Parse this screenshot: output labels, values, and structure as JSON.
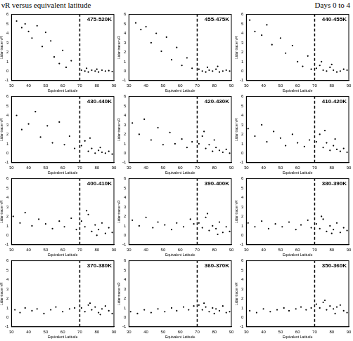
{
  "header": {
    "title": "νR versus equivalent latitude",
    "subtitle": "Days 0 to 4"
  },
  "chart_data": [
    {
      "type": "scatter",
      "title": "475-520K",
      "x_label": "Equivalent Latitude",
      "y_label": "Lidar tracer νR",
      "xlim": [
        30,
        90
      ],
      "ylim": [
        -1,
        6
      ],
      "xticks": [
        30,
        40,
        50,
        60,
        70,
        80,
        90
      ],
      "yticks": [
        -1,
        0,
        1,
        2,
        3,
        4,
        5,
        6
      ],
      "grid": false,
      "series": [
        {
          "color": "#000000",
          "marker": "dot",
          "x": [
            33,
            36,
            38,
            40,
            42,
            45,
            48,
            50,
            53,
            55,
            58,
            60,
            62,
            65,
            71,
            73,
            75,
            77,
            79,
            81,
            83,
            85,
            87,
            89,
            74,
            80
          ],
          "values": [
            5.3,
            4.6,
            5.0,
            4.2,
            3.5,
            4.8,
            2.6,
            4.1,
            3.2,
            1.5,
            0.8,
            2.2,
            0.4,
            1.1,
            0.1,
            0.0,
            -0.1,
            0.1,
            0.0,
            -0.1,
            0.1,
            0.0,
            0.05,
            -0.05,
            0.3,
            0.2
          ]
        },
        {
          "type": "line",
          "line_style": "dashed",
          "color": "#000000",
          "x": [
            70,
            70
          ],
          "values": [
            -1,
            6
          ]
        }
      ]
    },
    {
      "type": "scatter",
      "title": "455-475K",
      "x_label": "Equivalent Latitude",
      "y_label": "Lidar tracer νR",
      "xlim": [
        30,
        90
      ],
      "ylim": [
        -1,
        6
      ],
      "xticks": [
        30,
        40,
        50,
        60,
        70,
        80,
        90
      ],
      "yticks": [
        -1,
        0,
        1,
        2,
        3,
        4,
        5,
        6
      ],
      "grid": false,
      "series": [
        {
          "color": "#000000",
          "marker": "dot",
          "x": [
            34,
            37,
            40,
            43,
            46,
            49,
            52,
            55,
            58,
            61,
            64,
            67,
            71,
            73,
            75,
            77,
            79,
            81,
            83,
            85,
            87,
            89,
            76,
            82
          ],
          "values": [
            5.1,
            4.4,
            4.7,
            3.0,
            4.0,
            2.1,
            3.6,
            1.2,
            2.5,
            0.6,
            1.4,
            0.3,
            0.2,
            0.0,
            -0.1,
            0.1,
            0.0,
            0.2,
            -0.1,
            0.0,
            0.1,
            0.0,
            0.4,
            0.5
          ]
        },
        {
          "type": "line",
          "line_style": "dashed",
          "color": "#000000",
          "x": [
            70,
            70
          ],
          "values": [
            -1,
            6
          ]
        }
      ]
    },
    {
      "type": "scatter",
      "title": "440-455K",
      "x_label": "Equivalent Latitude",
      "y_label": "Lidar tracer νR",
      "xlim": [
        30,
        90
      ],
      "ylim": [
        -1,
        6
      ],
      "xticks": [
        30,
        40,
        50,
        60,
        70,
        80,
        90
      ],
      "yticks": [
        -1,
        0,
        1,
        2,
        3,
        4,
        5,
        6
      ],
      "grid": false,
      "series": [
        {
          "color": "#000000",
          "marker": "dot",
          "x": [
            32,
            35,
            39,
            42,
            45,
            50,
            53,
            57,
            60,
            63,
            66,
            68,
            71,
            73,
            75,
            77,
            79,
            81,
            83,
            85,
            87,
            89,
            74,
            80
          ],
          "values": [
            5.4,
            4.2,
            3.8,
            4.9,
            2.8,
            3.5,
            1.9,
            2.7,
            1.0,
            0.5,
            1.6,
            0.2,
            0.3,
            0.6,
            0.1,
            0.0,
            0.4,
            0.1,
            -0.1,
            0.0,
            0.2,
            0.1,
            1.0,
            0.7
          ]
        },
        {
          "type": "line",
          "line_style": "dashed",
          "color": "#000000",
          "x": [
            70,
            70
          ],
          "values": [
            -1,
            6
          ]
        }
      ]
    },
    {
      "type": "scatter",
      "title": "430-440K",
      "x_label": "Equivalent Latitude",
      "y_label": "Lidar tracer νR",
      "xlim": [
        30,
        90
      ],
      "ylim": [
        -1,
        6
      ],
      "xticks": [
        30,
        40,
        50,
        60,
        70,
        80,
        90
      ],
      "yticks": [
        -1,
        0,
        1,
        2,
        3,
        4,
        5,
        6
      ],
      "grid": false,
      "series": [
        {
          "color": "#000000",
          "marker": "dot",
          "x": [
            33,
            36,
            40,
            44,
            47,
            51,
            54,
            58,
            61,
            64,
            67,
            71,
            73,
            75,
            77,
            79,
            81,
            83,
            85,
            87,
            89,
            76,
            82
          ],
          "values": [
            4.0,
            2.5,
            3.1,
            4.4,
            1.7,
            2.9,
            1.1,
            3.3,
            0.9,
            1.8,
            0.5,
            0.8,
            1.3,
            0.2,
            0.5,
            0.0,
            0.3,
            0.1,
            0.0,
            0.2,
            -0.1,
            1.6,
            0.6
          ]
        },
        {
          "type": "line",
          "line_style": "dashed",
          "color": "#000000",
          "x": [
            70,
            70
          ],
          "values": [
            -1,
            6
          ]
        }
      ]
    },
    {
      "type": "scatter",
      "title": "420-430K",
      "x_label": "Equivalent Latitude",
      "y_label": "Lidar tracer νR",
      "xlim": [
        30,
        90
      ],
      "ylim": [
        -1,
        6
      ],
      "xticks": [
        30,
        40,
        50,
        60,
        70,
        80,
        90
      ],
      "yticks": [
        -1,
        0,
        1,
        2,
        3,
        4,
        5,
        6
      ],
      "grid": false,
      "series": [
        {
          "color": "#000000",
          "marker": "dot",
          "x": [
            32,
            36,
            39,
            43,
            47,
            50,
            54,
            57,
            61,
            64,
            67,
            71,
            73,
            75,
            77,
            79,
            81,
            83,
            85,
            87,
            89,
            74,
            80
          ],
          "values": [
            3.2,
            2.0,
            3.6,
            1.4,
            2.7,
            0.9,
            2.2,
            1.0,
            1.5,
            0.6,
            1.2,
            1.0,
            1.8,
            0.5,
            0.9,
            0.2,
            0.6,
            0.3,
            0.1,
            0.4,
            0.0,
            2.3,
            1.4
          ]
        },
        {
          "type": "line",
          "line_style": "dashed",
          "color": "#000000",
          "x": [
            70,
            70
          ],
          "values": [
            -1,
            6
          ]
        }
      ]
    },
    {
      "type": "scatter",
      "title": "410-420K",
      "x_label": "Equivalent Latitude",
      "y_label": "Lidar tracer νR",
      "xlim": [
        30,
        90
      ],
      "ylim": [
        -1,
        6
      ],
      "xticks": [
        30,
        40,
        50,
        60,
        70,
        80,
        90
      ],
      "yticks": [
        -1,
        0,
        1,
        2,
        3,
        4,
        5,
        6
      ],
      "grid": false,
      "series": [
        {
          "color": "#000000",
          "marker": "dot",
          "x": [
            31,
            35,
            39,
            42,
            46,
            50,
            53,
            57,
            60,
            64,
            67,
            71,
            73,
            75,
            77,
            79,
            81,
            83,
            85,
            87,
            89,
            76,
            82
          ],
          "values": [
            2.6,
            1.8,
            3.0,
            1.2,
            2.3,
            1.6,
            0.8,
            2.0,
            1.1,
            0.7,
            1.4,
            1.2,
            2.0,
            0.6,
            1.1,
            0.3,
            0.8,
            0.4,
            0.2,
            0.5,
            0.1,
            2.4,
            1.5
          ]
        },
        {
          "type": "line",
          "line_style": "dashed",
          "color": "#000000",
          "x": [
            70,
            70
          ],
          "values": [
            -1,
            6
          ]
        }
      ]
    },
    {
      "type": "scatter",
      "title": "400-410K",
      "x_label": "Equivalent Latitude",
      "y_label": "Lidar tracer νR",
      "xlim": [
        30,
        90
      ],
      "ylim": [
        -1,
        6
      ],
      "xticks": [
        30,
        40,
        50,
        60,
        70,
        80,
        90
      ],
      "yticks": [
        -1,
        0,
        1,
        2,
        3,
        4,
        5,
        6
      ],
      "grid": false,
      "series": [
        {
          "color": "#000000",
          "marker": "dot",
          "x": [
            31,
            35,
            38,
            42,
            46,
            50,
            54,
            58,
            61,
            65,
            68,
            71,
            73,
            75,
            77,
            79,
            81,
            83,
            85,
            87,
            89,
            74,
            80
          ],
          "values": [
            2.0,
            1.3,
            2.4,
            1.0,
            1.7,
            1.2,
            0.7,
            1.5,
            0.9,
            1.8,
            0.6,
            1.5,
            0.9,
            2.2,
            0.4,
            1.1,
            0.6,
            1.3,
            0.2,
            0.8,
            0.3,
            2.6,
            0.0
          ]
        },
        {
          "type": "line",
          "line_style": "dashed",
          "color": "#000000",
          "x": [
            70,
            70
          ],
          "values": [
            -1,
            6
          ]
        }
      ]
    },
    {
      "type": "scatter",
      "title": "390-400K",
      "x_label": "Equivalent Latitude",
      "y_label": "Lidar tracer νR",
      "xlim": [
        30,
        90
      ],
      "ylim": [
        -1,
        6
      ],
      "xticks": [
        30,
        40,
        50,
        60,
        70,
        80,
        90
      ],
      "yticks": [
        -1,
        0,
        1,
        2,
        3,
        4,
        5,
        6
      ],
      "grid": false,
      "series": [
        {
          "color": "#000000",
          "marker": "dot",
          "x": [
            32,
            36,
            40,
            44,
            47,
            51,
            55,
            58,
            62,
            66,
            68,
            71,
            73,
            75,
            77,
            79,
            81,
            83,
            85,
            87,
            89,
            76,
            82
          ],
          "values": [
            1.6,
            1.0,
            1.9,
            0.8,
            1.4,
            1.1,
            0.6,
            1.3,
            0.9,
            1.7,
            1.2,
            1.3,
            0.8,
            1.9,
            0.5,
            1.0,
            0.7,
            1.4,
            0.3,
            0.9,
            0.4,
            2.3,
            0.1
          ]
        },
        {
          "type": "line",
          "line_style": "dashed",
          "color": "#000000",
          "x": [
            70,
            70
          ],
          "values": [
            -1,
            6
          ]
        }
      ]
    },
    {
      "type": "scatter",
      "title": "380-390K",
      "x_label": "Equivalent Latitude",
      "y_label": "Lidar tracer νR",
      "xlim": [
        30,
        90
      ],
      "ylim": [
        -1,
        6
      ],
      "xticks": [
        30,
        40,
        50,
        60,
        70,
        80,
        90
      ],
      "yticks": [
        -1,
        0,
        1,
        2,
        3,
        4,
        5,
        6
      ],
      "grid": false,
      "series": [
        {
          "color": "#000000",
          "marker": "dot",
          "x": [
            31,
            35,
            39,
            43,
            47,
            51,
            55,
            59,
            62,
            66,
            68,
            71,
            73,
            75,
            77,
            79,
            81,
            83,
            85,
            87,
            89,
            74,
            80
          ],
          "values": [
            1.3,
            0.9,
            1.5,
            0.7,
            1.2,
            0.9,
            1.4,
            0.6,
            1.1,
            1.6,
            0.8,
            1.2,
            0.7,
            1.7,
            0.4,
            1.0,
            0.6,
            1.3,
            0.3,
            0.8,
            0.5,
            2.0,
            0.2
          ]
        },
        {
          "type": "line",
          "line_style": "dashed",
          "color": "#000000",
          "x": [
            70,
            70
          ],
          "values": [
            -1,
            6
          ]
        }
      ]
    },
    {
      "type": "scatter",
      "title": "370-380K",
      "x_label": "Equivalent Latitude",
      "y_label": "Lidar tracer νR",
      "xlim": [
        30,
        90
      ],
      "ylim": [
        -1,
        6
      ],
      "xticks": [
        30,
        40,
        50,
        60,
        70,
        80,
        90
      ],
      "yticks": [
        -1,
        0,
        1,
        2,
        3,
        4,
        5,
        6
      ],
      "grid": false,
      "series": [
        {
          "color": "#000000",
          "marker": "dot",
          "x": [
            32,
            35,
            38,
            42,
            45,
            49,
            53,
            56,
            60,
            64,
            67,
            71,
            73,
            75,
            77,
            79,
            81,
            83,
            85,
            87,
            89,
            76,
            82
          ],
          "values": [
            0.8,
            0.5,
            1.0,
            0.7,
            0.9,
            0.4,
            0.8,
            1.1,
            0.6,
            0.9,
            1.0,
            1.0,
            0.6,
            1.3,
            0.8,
            1.1,
            0.5,
            0.9,
            1.2,
            0.7,
            0.4,
            1.5,
            0.3
          ]
        },
        {
          "type": "line",
          "line_style": "dashed",
          "color": "#000000",
          "x": [
            70,
            70
          ],
          "values": [
            -1,
            6
          ]
        }
      ]
    },
    {
      "type": "scatter",
      "title": "360-370K",
      "x_label": "Equivalent Latitude",
      "y_label": "Lidar tracer νR",
      "xlim": [
        30,
        90
      ],
      "ylim": [
        -1,
        6
      ],
      "xticks": [
        30,
        40,
        50,
        60,
        70,
        80,
        90
      ],
      "yticks": [
        -1,
        0,
        1,
        2,
        3,
        4,
        5,
        6
      ],
      "grid": false,
      "series": [
        {
          "color": "#000000",
          "marker": "dot",
          "x": [
            31,
            35,
            39,
            43,
            47,
            51,
            55,
            58,
            62,
            65,
            68,
            71,
            73,
            75,
            77,
            79,
            81,
            83,
            85,
            87,
            89,
            74,
            80
          ],
          "values": [
            0.6,
            0.4,
            0.8,
            0.5,
            0.9,
            0.6,
            1.0,
            0.7,
            1.1,
            0.8,
            1.2,
            1.3,
            0.8,
            1.1,
            0.6,
            1.0,
            0.9,
            0.7,
            1.2,
            0.5,
            0.6,
            1.5,
            0.4
          ]
        },
        {
          "type": "line",
          "line_style": "dashed",
          "color": "#000000",
          "x": [
            70,
            70
          ],
          "values": [
            -1,
            6
          ]
        }
      ]
    },
    {
      "type": "scatter",
      "title": "350-360K",
      "x_label": "Equivalent Latitude",
      "y_label": "Lidar tracer νR",
      "xlim": [
        30,
        90
      ],
      "ylim": [
        -1,
        6
      ],
      "xticks": [
        30,
        40,
        50,
        60,
        70,
        80,
        90
      ],
      "yticks": [
        -1,
        0,
        1,
        2,
        3,
        4,
        5,
        6
      ],
      "grid": false,
      "series": [
        {
          "color": "#000000",
          "marker": "dot",
          "x": [
            32,
            36,
            40,
            44,
            48,
            52,
            55,
            59,
            62,
            65,
            68,
            71,
            73,
            75,
            77,
            79,
            81,
            83,
            85,
            87,
            89,
            76,
            82
          ],
          "values": [
            0.7,
            0.5,
            0.9,
            0.6,
            0.8,
            1.0,
            0.7,
            0.9,
            1.1,
            0.8,
            1.0,
            1.4,
            1.0,
            1.6,
            0.8,
            1.2,
            0.9,
            1.1,
            1.3,
            0.7,
            0.5,
            1.8,
            0.4
          ]
        },
        {
          "type": "line",
          "line_style": "dashed",
          "color": "#000000",
          "x": [
            70,
            70
          ],
          "values": [
            -1,
            6
          ]
        }
      ]
    }
  ]
}
